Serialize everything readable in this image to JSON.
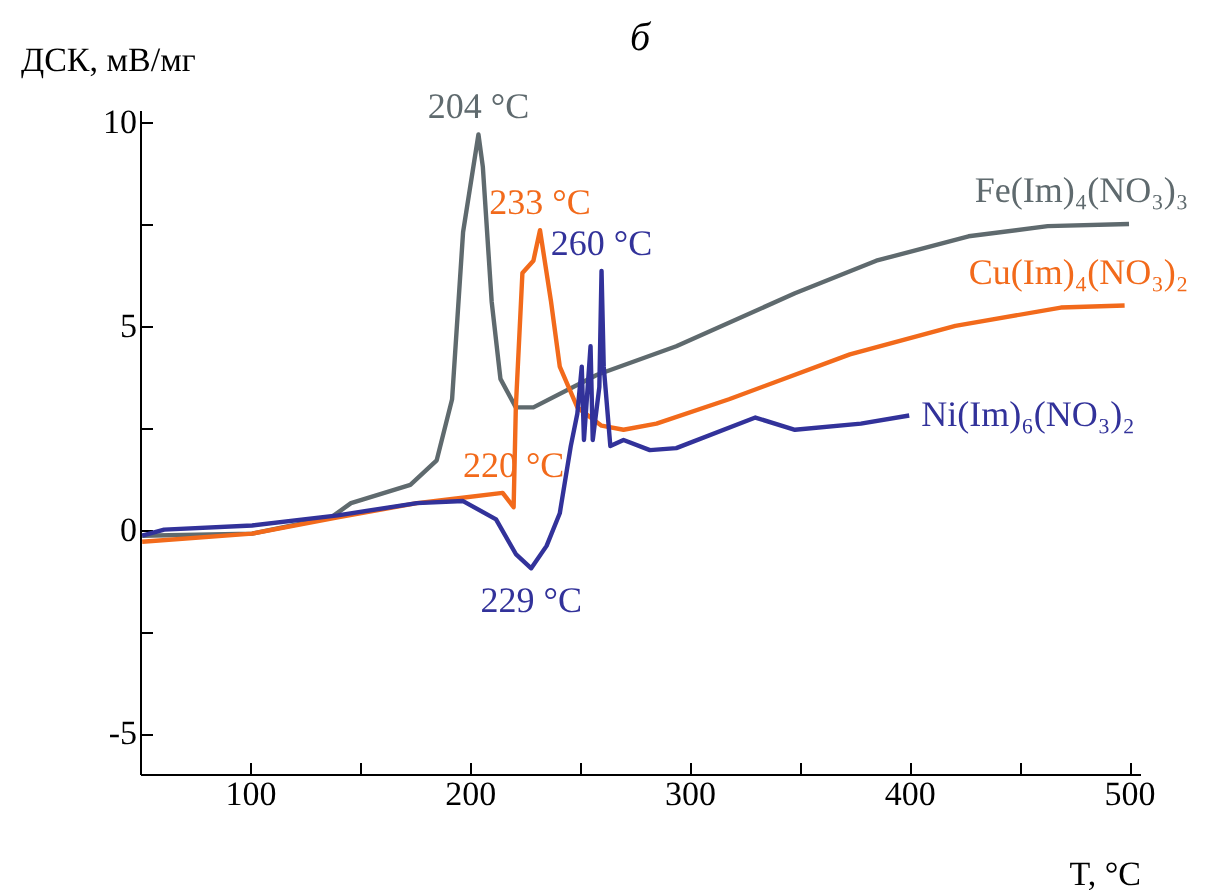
{
  "chart_data": {
    "type": "line",
    "title": "б",
    "xlabel": "T, °C",
    "ylabel": "ДСК, мВ/мг",
    "xlim": [
      50,
      505
    ],
    "ylim": [
      -6,
      10.3
    ],
    "xticks": [
      {
        "value": 50,
        "label": null
      },
      100,
      {
        "value": 150,
        "label": null
      },
      200,
      {
        "value": 250,
        "label": null
      },
      300,
      {
        "value": 350,
        "label": null
      },
      400,
      {
        "value": 450,
        "label": null
      },
      500
    ],
    "yticks": [
      -5,
      {
        "value": -2.5,
        "label": null
      },
      0,
      {
        "value": 2.5,
        "label": null
      },
      5,
      {
        "value": 7.5,
        "label": null
      },
      10
    ],
    "grid": false,
    "line_style": "solid",
    "marker": "none",
    "annotations": [
      {
        "text": "204 °C",
        "x": 204,
        "y": 9.7
      },
      {
        "text": "233 °C",
        "x": 232,
        "y": 7.35
      },
      {
        "text": "260 °C",
        "x": 260,
        "y": 6.35
      },
      {
        "text": "220 °C",
        "x": 220,
        "y": 0.9
      },
      {
        "text": "229 °C",
        "x": 228,
        "y": -0.95
      }
    ],
    "series": [
      {
        "name": "Fe(Im)₄(NO₃)₃",
        "color": "#5f6a6e",
        "x": [
          51,
          101,
          137,
          146,
          173,
          185,
          192,
          197,
          204,
          206,
          210,
          214,
          221,
          229,
          258,
          294,
          348,
          385,
          427,
          463,
          500
        ],
        "values": [
          -0.15,
          -0.1,
          0.3,
          0.65,
          1.1,
          1.7,
          3.2,
          7.3,
          9.7,
          8.9,
          5.6,
          3.7,
          3.0,
          3.0,
          3.8,
          4.5,
          5.8,
          6.6,
          7.2,
          7.45,
          7.5
        ]
      },
      {
        "name": "Cu(Im)₄(NO₃)₂",
        "color": "#f26a1b",
        "x": [
          51,
          101,
          140,
          176,
          192,
          215,
          220,
          221,
          224,
          229,
          232,
          237,
          241,
          249,
          260,
          270,
          285,
          318,
          373,
          421,
          469,
          498
        ],
        "values": [
          -0.3,
          -0.1,
          0.3,
          0.65,
          0.75,
          0.9,
          0.55,
          3.0,
          6.3,
          6.6,
          7.35,
          5.6,
          4.0,
          3.0,
          2.55,
          2.45,
          2.6,
          3.2,
          4.3,
          5.0,
          5.45,
          5.5
        ]
      },
      {
        "name": "Ni(Im)₆(NO₃)₂",
        "color": "#32329a",
        "x": [
          51,
          61,
          101,
          140,
          176,
          197,
          212,
          221,
          228,
          235,
          241,
          246,
          249,
          251,
          252,
          255,
          256,
          259,
          260,
          261,
          264,
          270,
          282,
          294,
          330,
          348,
          378,
          400
        ],
        "values": [
          -0.15,
          0.0,
          0.1,
          0.35,
          0.65,
          0.7,
          0.25,
          -0.6,
          -0.95,
          -0.4,
          0.4,
          2.05,
          2.85,
          4.0,
          2.2,
          4.5,
          2.2,
          3.5,
          6.35,
          4.0,
          2.05,
          2.2,
          1.95,
          2.0,
          2.75,
          2.45,
          2.6,
          2.8
        ]
      }
    ]
  }
}
